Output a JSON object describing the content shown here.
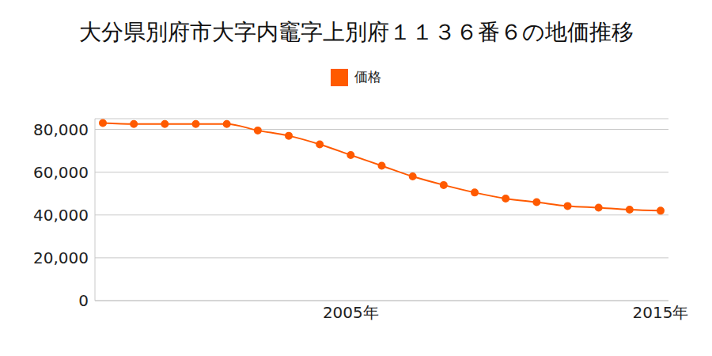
{
  "chart_data": {
    "type": "line",
    "title": "大分県別府市大字内竈字上別府１１３６番６の地価推移",
    "categories": [
      null,
      null,
      null,
      null,
      null,
      null,
      null,
      null,
      "2005年",
      null,
      null,
      null,
      null,
      null,
      null,
      null,
      null,
      null,
      "2015年"
    ],
    "series": [
      {
        "name": "価格",
        "color": "#ff5a00",
        "marker": "circle",
        "values": [
          83000,
          82500,
          82500,
          82500,
          82500,
          79500,
          77000,
          73000,
          68000,
          63000,
          58000,
          54000,
          50500,
          47700,
          46000,
          44200,
          43400,
          42500,
          42000
        ]
      }
    ],
    "ylim": [
      0,
      85000
    ],
    "yticks": [
      0,
      {
        "value": 20000,
        "label": "20,000"
      },
      {
        "value": 40000,
        "label": "40,000"
      },
      {
        "value": 60000,
        "label": "60,000"
      },
      {
        "value": 80000,
        "label": "80,000"
      }
    ],
    "grid": true,
    "legend": "top"
  }
}
